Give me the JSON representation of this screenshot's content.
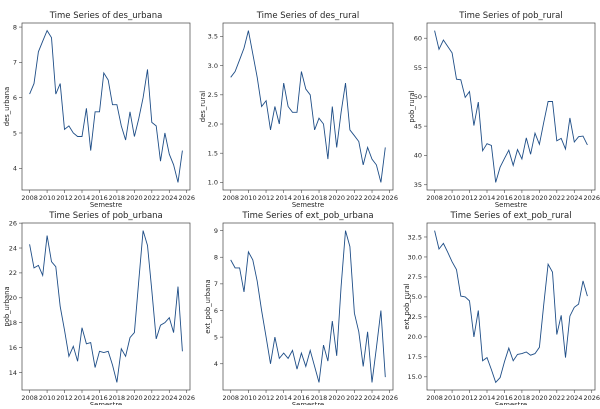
{
  "chart_data": [
    {
      "type": "line",
      "title": "Time Series of des_urbana",
      "xlabel": "Semestre",
      "ylabel": "des_urbana",
      "grid": false,
      "x_start": 2008,
      "x_step": 0.5,
      "xticks": [
        2008,
        2010,
        2012,
        2014,
        2016,
        2018,
        2020,
        2022,
        2024,
        2026
      ],
      "yticks": [
        4,
        5,
        6,
        7,
        8
      ],
      "ytick_labels": [
        "4",
        "5",
        "6",
        "7",
        "8"
      ],
      "values": [
        6.1,
        6.4,
        7.3,
        7.6,
        7.9,
        7.7,
        6.1,
        6.4,
        5.1,
        5.2,
        5.0,
        4.9,
        4.9,
        5.7,
        4.5,
        5.6,
        5.6,
        6.7,
        6.5,
        5.8,
        5.8,
        5.2,
        4.8,
        5.6,
        4.9,
        5.4,
        6.0,
        6.8,
        5.3,
        5.2,
        4.2,
        5.0,
        4.4,
        4.1,
        3.6,
        4.5
      ]
    },
    {
      "type": "line",
      "title": "Time Series of des_rural",
      "xlabel": "Semestre",
      "ylabel": "des_rural",
      "grid": false,
      "x_start": 2008,
      "x_step": 0.5,
      "xticks": [
        2008,
        2010,
        2012,
        2014,
        2016,
        2018,
        2020,
        2022,
        2024,
        2026
      ],
      "yticks": [
        1.0,
        1.5,
        2.0,
        2.5,
        3.0,
        3.5
      ],
      "ytick_labels": [
        "1.0",
        "1.5",
        "2.0",
        "2.5",
        "3.0",
        "3.5"
      ],
      "values": [
        2.8,
        2.9,
        3.1,
        3.3,
        3.6,
        3.2,
        2.8,
        2.3,
        2.4,
        1.9,
        2.3,
        2.0,
        2.7,
        2.3,
        2.2,
        2.2,
        2.9,
        2.6,
        2.5,
        1.9,
        2.1,
        2.0,
        1.4,
        2.3,
        1.6,
        2.2,
        2.7,
        1.9,
        1.8,
        1.7,
        1.3,
        1.6,
        1.4,
        1.3,
        1.0,
        1.6
      ]
    },
    {
      "type": "line",
      "title": "Time Series of pob_rural",
      "xlabel": "Semestre",
      "ylabel": "pob_rural",
      "grid": false,
      "x_start": 2008,
      "x_step": 0.5,
      "xticks": [
        2008,
        2010,
        2012,
        2014,
        2016,
        2018,
        2020,
        2022,
        2024,
        2026
      ],
      "yticks": [
        35,
        40,
        45,
        50,
        55,
        60
      ],
      "ytick_labels": [
        "35",
        "40",
        "45",
        "50",
        "55",
        "60"
      ],
      "values": [
        61.3,
        58.1,
        59.7,
        58.6,
        57.5,
        53.0,
        52.9,
        49.9,
        50.9,
        45.1,
        49.1,
        40.8,
        42.0,
        41.7,
        35.4,
        38.0,
        39.5,
        40.9,
        38.3,
        41.0,
        39.4,
        43.0,
        40.2,
        43.8,
        41.9,
        45.6,
        49.2,
        49.2,
        42.5,
        42.9,
        41.1,
        46.4,
        42.3,
        43.2,
        43.3,
        41.8
      ]
    },
    {
      "type": "line",
      "title": "Time Series of pob_urbana",
      "xlabel": "Semestre",
      "ylabel": "pob_urbana",
      "grid": false,
      "x_start": 2008,
      "x_step": 0.5,
      "xticks": [
        2008,
        2010,
        2012,
        2014,
        2016,
        2018,
        2020,
        2022,
        2024,
        2026
      ],
      "yticks": [
        14,
        16,
        18,
        20,
        22,
        24,
        26
      ],
      "ytick_labels": [
        "14",
        "16",
        "18",
        "20",
        "22",
        "24",
        "26"
      ],
      "values": [
        24.3,
        22.4,
        22.6,
        21.8,
        25.0,
        22.9,
        22.5,
        19.3,
        17.4,
        15.3,
        16.1,
        14.9,
        17.6,
        16.3,
        16.4,
        14.4,
        15.7,
        15.6,
        15.7,
        14.6,
        13.2,
        15.9,
        15.3,
        16.8,
        17.2,
        21.3,
        25.4,
        24.2,
        20.6,
        16.7,
        17.8,
        18.0,
        18.4,
        17.2,
        20.9,
        15.7
      ]
    },
    {
      "type": "line",
      "title": "Time Series of ext_pob_urbana",
      "xlabel": "Semestre",
      "ylabel": "ext_pob_urbana",
      "grid": false,
      "x_start": 2008,
      "x_step": 0.5,
      "xticks": [
        2008,
        2010,
        2012,
        2014,
        2016,
        2018,
        2020,
        2022,
        2024,
        2026
      ],
      "yticks": [
        4,
        5,
        6,
        7,
        8,
        9
      ],
      "ytick_labels": [
        "4",
        "5",
        "6",
        "7",
        "8",
        "9"
      ],
      "values": [
        7.9,
        7.6,
        7.6,
        6.7,
        8.2,
        7.9,
        7.1,
        6.0,
        5.0,
        4.0,
        5.0,
        4.2,
        4.4,
        4.2,
        4.5,
        3.8,
        4.4,
        3.9,
        4.5,
        3.9,
        3.3,
        4.7,
        4.1,
        5.6,
        4.3,
        6.9,
        9.0,
        8.4,
        5.9,
        5.2,
        3.9,
        5.2,
        3.3,
        4.6,
        6.0,
        3.5
      ]
    },
    {
      "type": "line",
      "title": "Time Series of ext_pob_rural",
      "xlabel": "Semestre",
      "ylabel": "ext_pob_rural",
      "grid": false,
      "x_start": 2008,
      "x_step": 0.5,
      "xticks": [
        2008,
        2010,
        2012,
        2014,
        2016,
        2018,
        2020,
        2022,
        2024,
        2026
      ],
      "yticks": [
        15.0,
        17.5,
        20.0,
        22.5,
        25.0,
        27.5,
        30.0,
        32.5
      ],
      "ytick_labels": [
        "15.0",
        "17.5",
        "20.0",
        "22.5",
        "25.0",
        "27.5",
        "30.0",
        "32.5"
      ],
      "values": [
        33.3,
        31.0,
        31.7,
        30.6,
        29.4,
        28.4,
        25.1,
        25.0,
        24.5,
        20.0,
        23.3,
        17.0,
        17.4,
        15.9,
        14.3,
        14.9,
        16.9,
        18.6,
        17.0,
        17.8,
        17.9,
        18.1,
        17.7,
        17.9,
        18.7,
        24.0,
        29.1,
        28.1,
        20.3,
        22.7,
        17.4,
        22.6,
        23.7,
        24.1,
        27.0,
        25.1
      ]
    }
  ],
  "colors": {
    "line": "#1f4e87",
    "axes": "#444444"
  }
}
